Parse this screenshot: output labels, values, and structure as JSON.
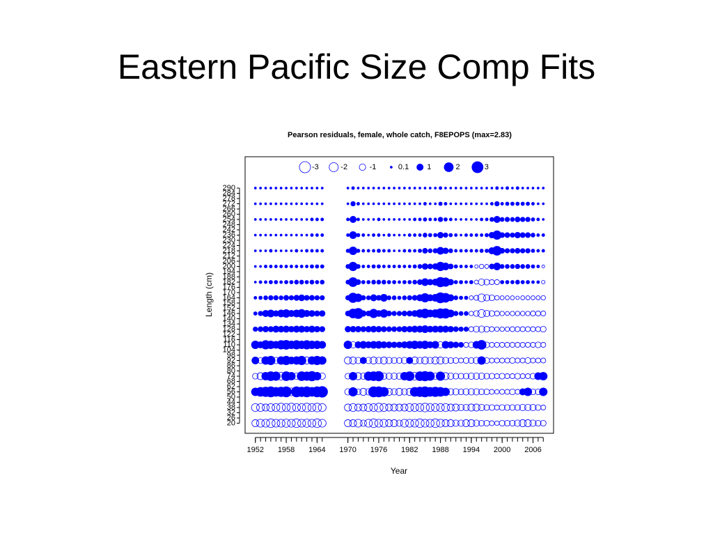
{
  "heading": "Eastern Pacific Size Comp Fits",
  "chart_data": {
    "type": "bubble",
    "title": "Pearson residuals, female, whole catch, F8EPOPS (max=2.83)",
    "xlabel": "Year",
    "ylabel": "Length (cm)",
    "color": "#0000ff",
    "legend_values": [
      -3,
      -2,
      -1,
      0.1,
      1,
      2,
      3
    ],
    "xlim": [
      1950,
      2010
    ],
    "xticks": [
      1952,
      1958,
      1964,
      1970,
      1976,
      1982,
      1988,
      1994,
      2000,
      2006
    ],
    "ylim": [
      14,
      294
    ],
    "yticks": [
      290,
      284,
      278,
      272,
      266,
      260,
      254,
      248,
      242,
      236,
      230,
      224,
      218,
      212,
      206,
      200,
      194,
      188,
      182,
      176,
      170,
      164,
      158,
      152,
      146,
      140,
      134,
      128,
      122,
      116,
      110,
      104,
      98,
      92,
      86,
      80,
      74,
      68,
      62,
      56,
      50,
      44,
      38,
      32,
      26,
      20
    ],
    "lengths": [
      290,
      272,
      254,
      236,
      218,
      200,
      182,
      164,
      146,
      128,
      110,
      92,
      74,
      56,
      38,
      20
    ],
    "years": [
      1952,
      1953,
      1954,
      1955,
      1956,
      1957,
      1958,
      1959,
      1960,
      1961,
      1962,
      1963,
      1964,
      1965,
      1970,
      1971,
      1972,
      1973,
      1974,
      1975,
      1976,
      1977,
      1978,
      1979,
      1980,
      1981,
      1982,
      1983,
      1984,
      1985,
      1986,
      1987,
      1988,
      1989,
      1990,
      1991,
      1992,
      1993,
      1994,
      1995,
      1996,
      1997,
      1998,
      1999,
      2000,
      2001,
      2002,
      2003,
      2004,
      2005,
      2006,
      2007,
      2008
    ],
    "residuals": [
      [
        0.1,
        0.1,
        0.1,
        0.1,
        0.1,
        0.1,
        0.1,
        0.2,
        0.3,
        0.5,
        1.5,
        1.2,
        -0.8,
        1.5,
        -1.5,
        -1.2
      ],
      [
        0.1,
        0.1,
        0.1,
        0.1,
        0.1,
        0.1,
        0.2,
        0.3,
        0.5,
        0.6,
        1,
        -0.8,
        -1.2,
        2,
        -1.5,
        -1.5
      ],
      [
        0.1,
        0.1,
        0.1,
        0.1,
        0.1,
        0.2,
        0.2,
        0.4,
        1,
        0.8,
        1.8,
        1.5,
        1.5,
        2.2,
        -1.2,
        -1.5
      ],
      [
        0.1,
        0.1,
        0.1,
        0.1,
        0.2,
        0.2,
        0.3,
        0.5,
        1.2,
        0.7,
        1.5,
        1.8,
        2,
        2.5,
        -1.5,
        -1.8
      ],
      [
        0.1,
        0.1,
        0.1,
        0.1,
        0.1,
        0.2,
        0.3,
        0.5,
        0.8,
        1,
        1.2,
        -1,
        1.8,
        2,
        -1.5,
        -1.5
      ],
      [
        0.1,
        0.1,
        0.1,
        0.1,
        0.1,
        0.2,
        0.2,
        0.4,
        1.2,
        0.9,
        1.8,
        1.5,
        -1.5,
        2.2,
        -1.8,
        -1.5
      ],
      [
        0.1,
        0.1,
        0.1,
        0.1,
        0.1,
        0.2,
        0.3,
        0.6,
        1.5,
        1,
        2,
        1.8,
        2,
        2.5,
        -1.5,
        -1.6
      ],
      [
        0.1,
        0.1,
        0.1,
        0.1,
        0.1,
        0.2,
        0.3,
        0.5,
        1,
        0.8,
        1.5,
        1.2,
        1.5,
        -1.5,
        -1.8,
        -1.5
      ],
      [
        0.1,
        0.1,
        0.1,
        0.1,
        0.2,
        0.2,
        0.4,
        0.7,
        1.2,
        1,
        1.8,
        1.5,
        -1,
        2.5,
        -1.5,
        -1.8
      ],
      [
        0.1,
        0.1,
        0.1,
        0.1,
        0.1,
        0.2,
        0.4,
        0.9,
        1.6,
        1,
        1.5,
        1.8,
        2,
        2.2,
        -1.5,
        -1.5
      ],
      [
        0.1,
        0.1,
        0.1,
        0.1,
        0.2,
        0.2,
        0.3,
        0.6,
        1,
        0.8,
        1.8,
        -1.2,
        1.8,
        2.5,
        -1.8,
        -1.6
      ],
      [
        0.1,
        0.1,
        0.2,
        0.2,
        0.2,
        0.3,
        0.4,
        0.6,
        0.9,
        1,
        1.5,
        1.5,
        2.2,
        2,
        -1.5,
        -1.5
      ],
      [
        0.1,
        0.1,
        0.2,
        0.2,
        0.2,
        0.3,
        0.3,
        0.5,
        0.7,
        0.8,
        1.5,
        1.8,
        1.5,
        2.5,
        -1.8,
        -1.8
      ],
      [
        0.1,
        0.1,
        0.2,
        0.2,
        0.2,
        0.3,
        0.4,
        0.5,
        0.8,
        0.7,
        1.2,
        1.5,
        -1,
        2.8,
        -1.5,
        -1.5
      ],
      [
        0.1,
        0.1,
        0.2,
        0.2,
        0.3,
        0.4,
        0.4,
        0.5,
        0.6,
        0.8,
        1.5,
        -1.2,
        -0.8,
        -1,
        -1.2,
        -1.2
      ],
      [
        0.2,
        0.5,
        1,
        1.2,
        1.5,
        1.8,
        2,
        2.2,
        2,
        0.8,
        -1,
        -1.2,
        1.5,
        1.8,
        -1.5,
        -1.2
      ],
      [
        0.1,
        0.2,
        0.2,
        0.3,
        0.3,
        0.4,
        0.6,
        1.5,
        2.5,
        0.8,
        1,
        -1,
        -1.2,
        -0.8,
        -1.2,
        -1.5
      ],
      [
        0.1,
        0.1,
        0.1,
        0.2,
        0.2,
        0.2,
        0.3,
        0.5,
        0.8,
        0.7,
        1.2,
        1,
        -1,
        -1.2,
        -1.2,
        -1
      ],
      [
        0.1,
        0.1,
        0.1,
        0.1,
        0.2,
        0.2,
        0.3,
        0.4,
        0.6,
        0.8,
        1,
        -1,
        1.8,
        -1,
        -1.5,
        -1.5
      ],
      [
        0.1,
        0.1,
        0.1,
        0.2,
        0.2,
        0.3,
        0.4,
        1,
        1.8,
        0.9,
        1.2,
        -1.2,
        2,
        2.5,
        -1.5,
        -1.8
      ],
      [
        0.1,
        0.1,
        0.2,
        0.2,
        0.3,
        0.3,
        0.4,
        0.6,
        0.9,
        0.8,
        1.2,
        -1,
        2.2,
        2.5,
        -1.8,
        -1.5
      ],
      [
        0.1,
        0.1,
        0.1,
        0.1,
        0.2,
        0.2,
        0.4,
        1.2,
        1.5,
        0.7,
        1,
        -1.2,
        -1,
        2,
        -1.5,
        -1.5
      ],
      [
        0.1,
        0.1,
        0.1,
        0.2,
        0.2,
        0.2,
        0.3,
        0.4,
        0.6,
        0.6,
        0.9,
        -1,
        -1,
        -1.2,
        -1.2,
        -1.2
      ],
      [
        0.1,
        0.1,
        0.1,
        0.1,
        0.1,
        0.2,
        0.3,
        0.4,
        0.5,
        0.6,
        0.8,
        -0.9,
        -1,
        -1,
        -1.2,
        -1.2
      ],
      [
        0.1,
        0.1,
        0.1,
        0.1,
        0.1,
        0.2,
        0.2,
        0.3,
        0.5,
        0.6,
        0.8,
        -0.8,
        -1,
        -1.2,
        -1.2,
        -1
      ],
      [
        0.1,
        0.1,
        0.1,
        0.1,
        0.2,
        0.2,
        0.3,
        0.4,
        0.6,
        0.8,
        1,
        -1,
        1.5,
        -1,
        -1.2,
        -1.5
      ],
      [
        0.1,
        0.1,
        0.1,
        0.2,
        0.2,
        0.2,
        0.3,
        0.5,
        0.7,
        0.8,
        1.2,
        1,
        2,
        -1.2,
        -1.5,
        -1.5
      ],
      [
        0.1,
        0.1,
        0.2,
        0.2,
        0.2,
        0.3,
        0.4,
        0.6,
        0.9,
        1,
        1.5,
        -1.2,
        -1.5,
        2,
        -1.5,
        -1.5
      ],
      [
        0.1,
        0.1,
        0.2,
        0.2,
        0.3,
        0.4,
        0.6,
        1,
        1.5,
        1,
        1.2,
        -1,
        2,
        2.2,
        -1.5,
        -1.8
      ],
      [
        0.1,
        0.2,
        0.3,
        0.4,
        0.6,
        0.8,
        1.2,
        1.8,
        2,
        1.2,
        1.5,
        -1.2,
        2.2,
        2.5,
        -1.8,
        -1.5
      ],
      [
        0.1,
        0.1,
        0.2,
        0.3,
        0.4,
        0.6,
        0.8,
        1,
        1.2,
        0.9,
        1,
        -1,
        1.8,
        2,
        -1.5,
        -1.5
      ],
      [
        0.1,
        0.1,
        0.2,
        0.3,
        0.5,
        0.8,
        1,
        1.2,
        1.5,
        1,
        1.2,
        -1.2,
        -1,
        2.2,
        -1.5,
        -1.8
      ],
      [
        0.2,
        0.3,
        0.5,
        0.8,
        1.2,
        1.8,
        2.2,
        2.5,
        2.2,
        1,
        -1,
        -1.2,
        1.8,
        2,
        -1.5,
        -1.5
      ],
      [
        0.1,
        0.2,
        0.3,
        0.5,
        0.8,
        1.2,
        1.8,
        2,
        2.2,
        1,
        1.2,
        -1,
        -1.2,
        1.5,
        -1.5,
        -1.2
      ],
      [
        0.1,
        0.1,
        0.2,
        0.3,
        0.4,
        0.6,
        0.8,
        1,
        1.2,
        0.8,
        1,
        -0.8,
        -1,
        -1,
        -1.2,
        -1.2
      ],
      [
        0.1,
        0.1,
        0.1,
        0.2,
        0.2,
        0.3,
        0.3,
        0.4,
        0.5,
        0.6,
        0.8,
        -0.8,
        -0.8,
        -1,
        -1.2,
        -1
      ],
      [
        0.1,
        0.1,
        0.1,
        0.1,
        0.2,
        0.2,
        0.3,
        0.3,
        0.4,
        0.5,
        0.6,
        -0.6,
        -0.8,
        -0.8,
        -1,
        -1
      ],
      [
        0.1,
        0.1,
        0.1,
        0.2,
        0.2,
        0.2,
        0.2,
        0.3,
        0.4,
        0.5,
        -0.6,
        -0.8,
        -0.8,
        -1,
        -1,
        -1.2
      ],
      [
        0.1,
        0.1,
        0.1,
        0.2,
        0.2,
        0.2,
        0.3,
        -0.4,
        -0.5,
        -0.6,
        -0.8,
        -0.8,
        -1,
        -1,
        -1.2,
        -1.2
      ],
      [
        0.1,
        0.1,
        0.1,
        0.2,
        0.2,
        -0.3,
        -0.4,
        -0.6,
        -0.8,
        -0.9,
        1.2,
        -1,
        -1,
        -1,
        -1.2,
        -1
      ],
      [
        0.1,
        0.1,
        0.2,
        0.2,
        0.3,
        -0.5,
        -1,
        -1.5,
        -1.5,
        -1,
        2,
        1.5,
        -1,
        -0.8,
        -1,
        -0.8
      ],
      [
        0.1,
        0.1,
        0.2,
        0.3,
        0.3,
        -0.4,
        -0.8,
        -1,
        -1,
        -0.8,
        -0.8,
        -0.8,
        -0.8,
        -0.8,
        -0.8,
        -0.8
      ],
      [
        0.1,
        0.2,
        0.4,
        0.8,
        1,
        0.6,
        -0.6,
        -0.8,
        -0.8,
        -0.6,
        -0.6,
        -0.6,
        -0.8,
        -0.6,
        -0.8,
        -0.6
      ],
      [
        0.2,
        0.5,
        1,
        1.8,
        2,
        1.2,
        -0.6,
        -0.5,
        -0.6,
        -0.5,
        -0.6,
        -0.6,
        -0.6,
        -0.5,
        -0.6,
        -0.5
      ],
      [
        0.1,
        0.2,
        0.4,
        0.6,
        0.6,
        0.4,
        0.3,
        -0.4,
        -0.5,
        -0.5,
        -0.6,
        -0.6,
        -0.8,
        -0.6,
        -0.8,
        -0.8
      ],
      [
        0.2,
        0.3,
        0.5,
        0.6,
        0.5,
        0.4,
        0.3,
        -0.4,
        -0.4,
        -0.5,
        -0.6,
        -0.6,
        -0.6,
        -0.6,
        -0.8,
        -0.8
      ],
      [
        0.1,
        0.3,
        0.4,
        0.5,
        0.5,
        0.4,
        0.3,
        -0.4,
        -0.5,
        -0.6,
        -0.6,
        -0.8,
        -0.6,
        -0.8,
        -0.8,
        -0.8
      ],
      [
        0.2,
        0.3,
        0.6,
        0.8,
        0.6,
        0.5,
        0.4,
        -0.3,
        -0.5,
        -0.6,
        -0.6,
        -0.6,
        -0.8,
        -0.6,
        -0.8,
        -1
      ],
      [
        0.1,
        0.3,
        0.5,
        0.6,
        0.5,
        0.4,
        0.3,
        -0.4,
        -0.5,
        -0.6,
        -0.6,
        -0.6,
        -0.6,
        1,
        -1,
        -1.2
      ],
      [
        0.1,
        0.3,
        0.5,
        0.6,
        0.5,
        0.4,
        0.3,
        -0.4,
        -0.5,
        -0.6,
        -0.6,
        -0.8,
        -0.6,
        1.5,
        -1,
        -1.2
      ],
      [
        0.1,
        0.2,
        0.3,
        0.4,
        0.3,
        0.3,
        0.2,
        -0.4,
        -0.6,
        -0.6,
        -0.6,
        -0.6,
        -0.8,
        -0.8,
        -1,
        -1
      ],
      [
        0.1,
        0.1,
        0.2,
        0.2,
        0.2,
        0.2,
        0.2,
        -0.4,
        -0.6,
        -0.6,
        -0.8,
        -0.6,
        1.2,
        -0.8,
        -0.8,
        -0.8
      ],
      [
        0.1,
        0.1,
        0.1,
        0.2,
        0.2,
        -0.2,
        -0.3,
        -0.5,
        -0.6,
        -0.8,
        -0.6,
        -0.6,
        1.5,
        1.5,
        -0.6,
        -0.8
      ]
    ]
  }
}
